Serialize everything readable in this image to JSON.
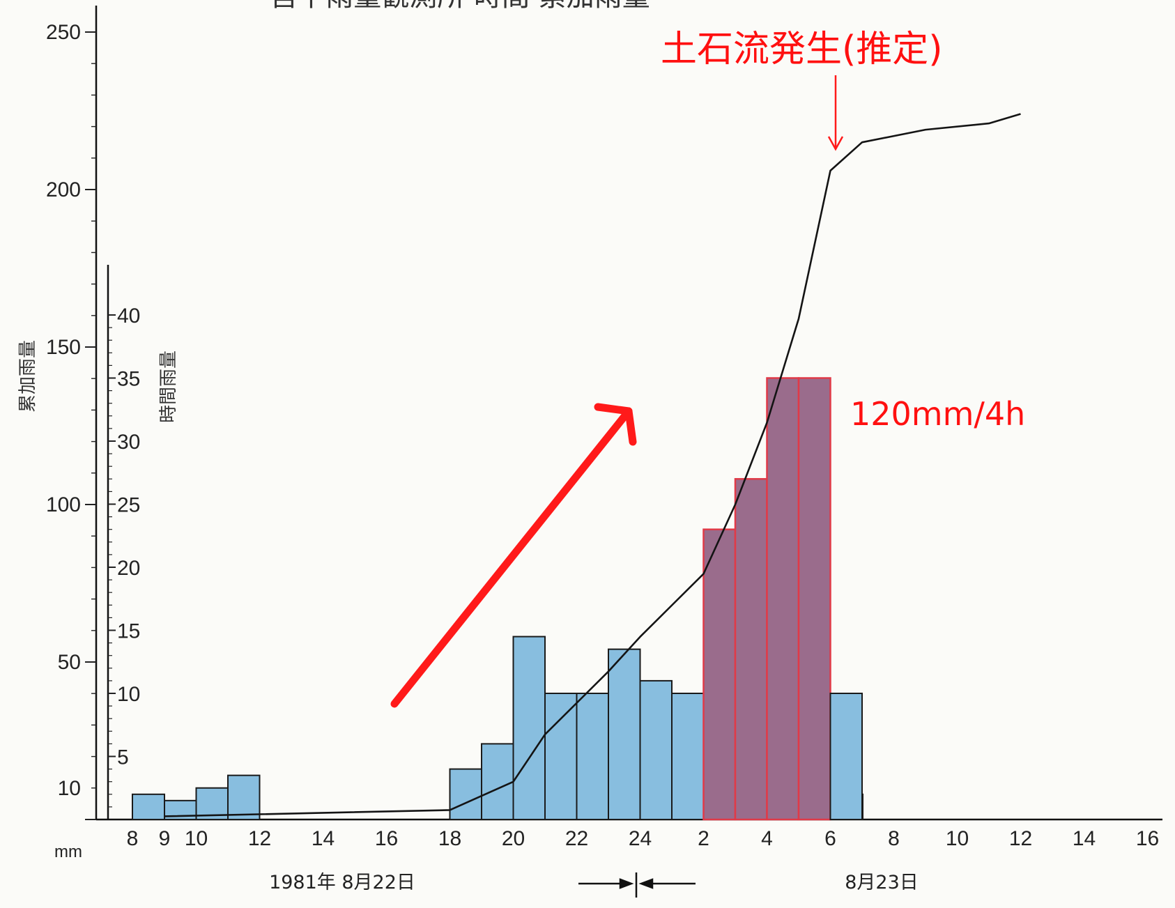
{
  "chart_data": {
    "type": "bar",
    "title": "宮下雨量観測所 時間 累加雨量",
    "left_axis": {
      "label": "累加雨量",
      "range": [
        0,
        250
      ],
      "ticks": [
        10,
        50,
        100,
        150,
        200,
        250
      ],
      "unit": "mm"
    },
    "right_axis": {
      "label": "時間雨量",
      "range": [
        0,
        40
      ],
      "ticks": [
        5,
        10,
        15,
        20,
        25,
        30,
        35,
        40
      ]
    },
    "x_ticks": [
      "8",
      "9",
      "10",
      "12",
      "14",
      "16",
      "18",
      "20",
      "22",
      "24",
      "2",
      "4",
      "6",
      "8",
      "10",
      "12",
      "14",
      "16"
    ],
    "date_labels": {
      "day1": "1981年 8月22日",
      "day2": "8月23日"
    },
    "hourly_series": {
      "name": "時間雨量",
      "hours": [
        "8-9",
        "18-19",
        "19-20",
        "20-21",
        "21-22",
        "22-23",
        "23-24",
        "24-1",
        "1-2",
        "2-3",
        "3-4",
        "4-5",
        "5-6",
        "6-7",
        "7-8",
        "8-9",
        "9-10",
        "10-11",
        "11-12"
      ],
      "values": [
        1,
        4,
        6,
        14.5,
        10,
        10,
        13.5,
        11,
        10,
        23,
        27,
        35,
        35,
        10,
        2,
        2,
        1.5,
        2.5,
        3.5
      ],
      "highlight_hours": [
        "2-3",
        "3-4",
        "4-5",
        "5-6"
      ]
    },
    "cumulative_series": {
      "name": "累加雨量",
      "hours": [
        9,
        18,
        20,
        21,
        22,
        23,
        24,
        25,
        26,
        27,
        28,
        29,
        30,
        31,
        33,
        35,
        36
      ],
      "values": [
        1,
        3,
        12,
        27,
        37,
        47,
        58,
        68,
        78,
        100,
        126,
        159,
        206,
        215,
        219,
        221,
        224
      ]
    },
    "annotations": {
      "event_label": "土石流発生(推定)",
      "rate_label": "120mm/4h"
    },
    "colors": {
      "bar_fill": "#88bedf",
      "highlight_fill": "#9a6c8c",
      "highlight_stroke": "#e03a48",
      "line": "#141414",
      "annotation": "#ff1010"
    }
  }
}
